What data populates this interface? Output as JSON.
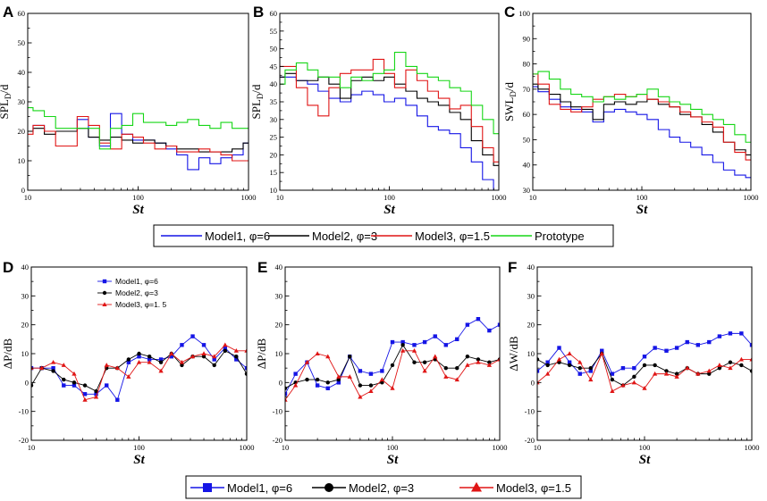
{
  "legends": {
    "top": [
      {
        "key": "m1",
        "label": "Model1, φ=6"
      },
      {
        "key": "m2",
        "label": "Model2, φ=3"
      },
      {
        "key": "m3",
        "label": "Model3, φ=1.5"
      },
      {
        "key": "pr",
        "label": "Prototype"
      }
    ],
    "bottom": [
      {
        "key": "m1",
        "label": "Model1, φ=6"
      },
      {
        "key": "m2",
        "label": "Model2, φ=3"
      },
      {
        "key": "m3",
        "label": "Model3, φ=1.5"
      }
    ],
    "inset_D": [
      {
        "key": "m1",
        "label": "Model1, φ=6"
      },
      {
        "key": "m2",
        "label": "Model2, φ=3"
      },
      {
        "key": "m3",
        "label": "Model3, φ=1. 5"
      }
    ]
  },
  "colors": {
    "m1": "#1515e6",
    "m2": "#000000",
    "m3": "#e01515",
    "pr": "#16d616"
  },
  "markers": {
    "m1": "square",
    "m2": "circle",
    "m3": "triangle"
  },
  "chart_data": [
    {
      "panel": "A",
      "type": "line",
      "style": "step",
      "ylabel": "SPL",
      "ylabel_sub": "D",
      "ylabel_suffix": "/d",
      "xlabel": "St",
      "xscale": "log",
      "xlim": [
        10,
        1000
      ],
      "ylim": [
        0,
        60
      ],
      "xticks": [
        10,
        100,
        1000
      ],
      "xtick_labels": [
        "10",
        "100",
        "1000"
      ],
      "yticks": [
        0,
        10,
        20,
        30,
        40,
        50,
        60
      ],
      "x": [
        10,
        12.5,
        16,
        20,
        25,
        31.5,
        40,
        50,
        63,
        80,
        100,
        125,
        160,
        200,
        250,
        315,
        400,
        500,
        630,
        800,
        1000
      ],
      "series": [
        {
          "key": "m1",
          "name": "Model1, φ=6",
          "values": [
            20,
            22,
            20,
            20,
            20,
            24,
            18,
            15,
            26,
            19,
            17,
            17,
            16,
            14,
            12,
            7,
            11,
            9,
            11,
            12,
            16
          ]
        },
        {
          "key": "m2",
          "name": "Model2, φ=3",
          "values": [
            20,
            21,
            19,
            20,
            20,
            21,
            18,
            17,
            18,
            17,
            16,
            17,
            16,
            15,
            14,
            14,
            13,
            13,
            13,
            14,
            16
          ]
        },
        {
          "key": "m3",
          "name": "Model3, φ=1.5",
          "values": [
            19,
            22,
            20,
            15,
            15,
            25,
            22,
            16,
            14,
            19,
            18,
            16,
            14,
            15,
            13,
            13,
            14,
            13,
            12,
            10,
            10
          ]
        },
        {
          "key": "pr",
          "name": "Prototype",
          "values": [
            28,
            27,
            25,
            21,
            21,
            21,
            21,
            14,
            21,
            22,
            26,
            23,
            23,
            22,
            23,
            24,
            22,
            21,
            23,
            21,
            21
          ]
        }
      ]
    },
    {
      "panel": "B",
      "type": "line",
      "style": "step",
      "ylabel": "SPL",
      "ylabel_sub": "D",
      "ylabel_suffix": "/d",
      "xlabel": "St",
      "xscale": "log",
      "xlim": [
        10,
        1000
      ],
      "ylim": [
        10,
        60
      ],
      "xticks": [
        10,
        100,
        1000
      ],
      "xtick_labels": [
        "10",
        "100",
        "1000"
      ],
      "yticks": [
        10,
        15,
        20,
        25,
        30,
        35,
        40,
        45,
        50,
        55,
        60
      ],
      "x": [
        10,
        12.5,
        16,
        20,
        25,
        31.5,
        40,
        50,
        63,
        80,
        100,
        125,
        160,
        200,
        250,
        315,
        400,
        500,
        630,
        800,
        1000
      ],
      "series": [
        {
          "key": "m1",
          "name": "Model1, φ=6",
          "values": [
            42,
            42,
            41,
            40,
            38,
            36,
            35,
            37,
            38,
            37,
            35,
            36,
            34,
            31,
            28,
            27,
            26,
            22,
            18,
            13,
            10
          ]
        },
        {
          "key": "m2",
          "name": "Model2, φ=3",
          "values": [
            42,
            43,
            41,
            41,
            42,
            40,
            36,
            41,
            42,
            41,
            42,
            40,
            38,
            36,
            35,
            34,
            32,
            30,
            24,
            20,
            17
          ]
        },
        {
          "key": "m3",
          "name": "Model3, φ=1.5",
          "values": [
            45,
            45,
            39,
            34,
            31,
            39,
            43,
            44,
            44,
            47,
            43,
            39,
            44,
            41,
            38,
            36,
            33,
            34,
            28,
            22,
            18
          ]
        },
        {
          "key": "pr",
          "name": "Prototype",
          "values": [
            40,
            44,
            46,
            44,
            42,
            42,
            39,
            42,
            41,
            43,
            44,
            49,
            45,
            43,
            42,
            41,
            39,
            38,
            34,
            30,
            26
          ]
        }
      ]
    },
    {
      "panel": "C",
      "type": "line",
      "style": "step",
      "ylabel": "SWL",
      "ylabel_sub": "D",
      "ylabel_suffix": "/d",
      "xlabel": "St",
      "xscale": "log",
      "xlim": [
        10,
        1000
      ],
      "ylim": [
        30,
        100
      ],
      "xticks": [
        10,
        100,
        1000
      ],
      "xtick_labels": [
        "10",
        "100",
        "1000"
      ],
      "yticks": [
        30,
        40,
        50,
        60,
        70,
        80,
        90,
        100
      ],
      "x": [
        10,
        12.5,
        16,
        20,
        25,
        31.5,
        40,
        50,
        63,
        80,
        100,
        125,
        160,
        200,
        250,
        315,
        400,
        500,
        630,
        800,
        1000
      ],
      "series": [
        {
          "key": "m1",
          "name": "Model1, φ=6",
          "values": [
            71,
            69,
            66,
            63,
            62,
            61,
            57,
            61,
            62,
            61,
            60,
            58,
            54,
            51,
            49,
            47,
            44,
            41,
            38,
            36,
            35
          ]
        },
        {
          "key": "m2",
          "name": "Model2, φ=3",
          "values": [
            72,
            70,
            68,
            65,
            63,
            62,
            58,
            64,
            65,
            64,
            65,
            66,
            64,
            63,
            60,
            59,
            56,
            53,
            49,
            46,
            44
          ]
        },
        {
          "key": "m3",
          "name": "Model3, φ=1.5",
          "values": [
            76,
            72,
            64,
            62,
            61,
            63,
            66,
            67,
            68,
            67,
            68,
            66,
            65,
            63,
            61,
            59,
            57,
            55,
            49,
            45,
            42
          ]
        },
        {
          "key": "pr",
          "name": "Prototype",
          "values": [
            76,
            77,
            74,
            70,
            68,
            67,
            65,
            67,
            66,
            67,
            68,
            70,
            67,
            65,
            64,
            62,
            60,
            58,
            56,
            52,
            49
          ]
        }
      ]
    },
    {
      "panel": "D",
      "type": "line",
      "style": "marker",
      "ylabel": "ΔP/dB",
      "xlabel": "St",
      "xscale": "log",
      "xlim": [
        10,
        1000
      ],
      "ylim": [
        -20,
        40
      ],
      "xticks": [
        10,
        100,
        1000
      ],
      "xtick_labels": [
        "10",
        "100",
        "1000"
      ],
      "yticks": [
        -20,
        -10,
        0,
        10,
        20,
        30,
        40
      ],
      "x": [
        10,
        12.5,
        16,
        20,
        25,
        31.5,
        40,
        50,
        63,
        80,
        100,
        125,
        160,
        200,
        250,
        315,
        400,
        500,
        630,
        800,
        1000
      ],
      "series": [
        {
          "key": "m1",
          "name": "Model1, φ=6",
          "values": [
            5,
            5,
            5,
            -1,
            -1,
            -4,
            -4,
            -1,
            -6,
            7,
            9,
            8,
            8,
            9,
            13,
            16,
            13,
            8,
            12,
            8,
            5
          ]
        },
        {
          "key": "m2",
          "name": "Model2, φ=3",
          "values": [
            -1,
            5,
            4,
            1,
            0,
            -1,
            -3,
            5,
            5,
            8,
            10,
            9,
            7,
            10,
            6,
            9,
            9,
            6,
            11,
            9,
            3
          ]
        },
        {
          "key": "m3",
          "name": "Model3, φ=1.5",
          "values": [
            5,
            5,
            7,
            6,
            3,
            -6,
            -5,
            6,
            5,
            2,
            7,
            7,
            4,
            10,
            7,
            9,
            10,
            9,
            13,
            11,
            11
          ]
        }
      ]
    },
    {
      "panel": "E",
      "type": "line",
      "style": "marker",
      "ylabel": "ΔP/dB",
      "xlabel": "St",
      "xscale": "log",
      "xlim": [
        10,
        1000
      ],
      "ylim": [
        -20,
        40
      ],
      "xticks": [
        10,
        100,
        1000
      ],
      "xtick_labels": [
        "10",
        "100",
        "1000"
      ],
      "yticks": [
        -20,
        -10,
        0,
        10,
        20,
        30,
        40
      ],
      "x": [
        10,
        12.5,
        16,
        20,
        25,
        31.5,
        40,
        50,
        63,
        80,
        100,
        125,
        160,
        200,
        250,
        315,
        400,
        500,
        630,
        800,
        1000
      ],
      "series": [
        {
          "key": "m1",
          "name": "Model1, φ=6",
          "values": [
            -4,
            3,
            7,
            -1,
            -2,
            0,
            9,
            4,
            3,
            4,
            14,
            14,
            13,
            14,
            16,
            13,
            15,
            20,
            22,
            18,
            20
          ]
        },
        {
          "key": "m2",
          "name": "Model2, φ=3",
          "values": [
            -2,
            0,
            1,
            1,
            0,
            1,
            9,
            -1,
            -1,
            0,
            6,
            13,
            7,
            7,
            8,
            5,
            5,
            9,
            8,
            7,
            8
          ]
        },
        {
          "key": "m3",
          "name": "Model3, φ=1.5",
          "values": [
            -6,
            -1,
            7,
            10,
            9,
            2,
            2,
            -5,
            -3,
            1,
            -2,
            11,
            11,
            4,
            9,
            2,
            1,
            6,
            7,
            6,
            8
          ]
        }
      ]
    },
    {
      "panel": "F",
      "type": "line",
      "style": "marker",
      "ylabel": "ΔW/dB",
      "xlabel": "St",
      "xscale": "log",
      "xlim": [
        10,
        1000
      ],
      "ylim": [
        -20,
        40
      ],
      "xticks": [
        10,
        100,
        1000
      ],
      "xtick_labels": [
        "10",
        "100",
        "1000"
      ],
      "yticks": [
        -20,
        -10,
        0,
        10,
        20,
        30,
        40
      ],
      "x": [
        10,
        12.5,
        16,
        20,
        25,
        31.5,
        40,
        50,
        63,
        80,
        100,
        125,
        160,
        200,
        250,
        315,
        400,
        500,
        630,
        800,
        1000
      ],
      "series": [
        {
          "key": "m1",
          "name": "Model1, φ=6",
          "values": [
            4,
            7,
            12,
            7,
            3,
            4,
            11,
            3,
            5,
            5,
            9,
            12,
            11,
            12,
            14,
            13,
            14,
            16,
            17,
            17,
            13
          ]
        },
        {
          "key": "m2",
          "name": "Model2, φ=3",
          "values": [
            8,
            6,
            7,
            6,
            5,
            5,
            10,
            1,
            -1,
            2,
            6,
            6,
            4,
            3,
            5,
            3,
            3,
            5,
            7,
            6,
            4
          ]
        },
        {
          "key": "m3",
          "name": "Model3, φ=1.5",
          "values": [
            0,
            3,
            8,
            10,
            7,
            1,
            10,
            -3,
            -1,
            0,
            -2,
            3,
            3,
            2,
            5,
            3,
            4,
            6,
            5,
            8,
            8
          ]
        }
      ]
    }
  ]
}
